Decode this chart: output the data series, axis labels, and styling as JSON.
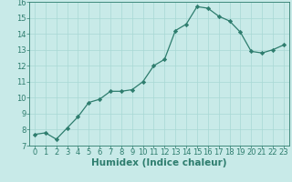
{
  "x": [
    0,
    1,
    2,
    3,
    4,
    5,
    6,
    7,
    8,
    9,
    10,
    11,
    12,
    13,
    14,
    15,
    16,
    17,
    18,
    19,
    20,
    21,
    22,
    23
  ],
  "y": [
    7.7,
    7.8,
    7.4,
    8.1,
    8.8,
    9.7,
    9.9,
    10.4,
    10.4,
    10.5,
    11.0,
    12.0,
    12.4,
    14.2,
    14.6,
    15.7,
    15.6,
    15.1,
    14.8,
    14.1,
    12.9,
    12.8,
    13.0,
    13.3
  ],
  "xlabel": "Humidex (Indice chaleur)",
  "xlim": [
    -0.5,
    23.5
  ],
  "ylim": [
    7,
    16
  ],
  "yticks": [
    7,
    8,
    9,
    10,
    11,
    12,
    13,
    14,
    15,
    16
  ],
  "xticks": [
    0,
    1,
    2,
    3,
    4,
    5,
    6,
    7,
    8,
    9,
    10,
    11,
    12,
    13,
    14,
    15,
    16,
    17,
    18,
    19,
    20,
    21,
    22,
    23
  ],
  "line_color": "#2e7d6e",
  "bg_color": "#c8eae8",
  "grid_color": "#a8d8d4",
  "tick_fontsize": 6.0,
  "xlabel_fontsize": 7.5
}
